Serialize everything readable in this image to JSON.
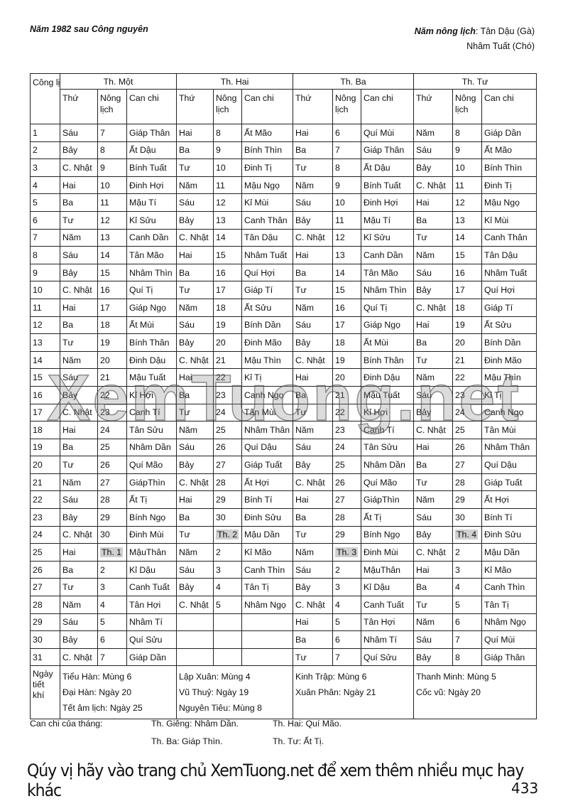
{
  "header": {
    "left": "Năm 1982 sau Công nguyên",
    "right_label": "Năm nông lịch",
    "right_value1": "Tân Dậu (Gà)",
    "right_value2": "Nhâm Tuất (Chó)"
  },
  "table": {
    "corner": "Công lịch",
    "months": [
      "Th. Một",
      "Th. Hai",
      "Th. Ba",
      "Th. Tư"
    ],
    "subheaders": [
      "Thứ",
      "Nông lịch",
      "Can chi"
    ],
    "month_markers": [
      "Th. 1",
      "Th. 2",
      "Th. 3",
      "Th. 4"
    ],
    "rows": [
      [
        "1",
        "Sáu",
        "7",
        "Giáp Thân",
        "Hai",
        "8",
        "Ất Mão",
        "Hai",
        "6",
        "Quí Mùi",
        "Năm",
        "8",
        "Giáp Dần"
      ],
      [
        "2",
        "Bảy",
        "8",
        "Ất Dậu",
        "Ba",
        "9",
        "Bính Thìn",
        "Ba",
        "7",
        "Giáp Thân",
        "Sáu",
        "9",
        "Ất Mão"
      ],
      [
        "3",
        "C. Nhật",
        "9",
        "Bính Tuất",
        "Tư",
        "10",
        "Đinh Tị",
        "Tư",
        "8",
        "Ất Dậu",
        "Bảy",
        "10",
        "Bính Thìn"
      ],
      [
        "4",
        "Hai",
        "10",
        "Đinh Hợi",
        "Năm",
        "11",
        "Mậu Ngọ",
        "Năm",
        "9",
        "Bính Tuất",
        "C. Nhật",
        "11",
        "Đinh Tị"
      ],
      [
        "5",
        "Ba",
        "11",
        "Mậu Tí",
        "Sáu",
        "12",
        "Kỉ Mùi",
        "Sáu",
        "10",
        "Đinh Hợi",
        "Hai",
        "12",
        "Mậu Ngọ"
      ],
      [
        "6",
        "Tư",
        "12",
        "Kỉ Sửu",
        "Bảy",
        "13",
        "Canh Thân",
        "Bảy",
        "11",
        "Mậu Tí",
        "Ba",
        "13",
        "Kỉ Mùi"
      ],
      [
        "7",
        "Năm",
        "13",
        "Canh Dần",
        "C. Nhật",
        "14",
        "Tân Dậu",
        "C. Nhật",
        "12",
        "Kỉ Sửu",
        "Tư",
        "14",
        "Canh Thân"
      ],
      [
        "8",
        "Sáu",
        "14",
        "Tân Mão",
        "Hai",
        "15",
        "Nhâm Tuất",
        "Hai",
        "13",
        "Canh Dần",
        "Năm",
        "15",
        "Tân Dậu"
      ],
      [
        "9",
        "Bảy",
        "15",
        "Nhâm Thìn",
        "Ba",
        "16",
        "Quí Hợi",
        "Ba",
        "14",
        "Tân Mão",
        "Sáu",
        "16",
        "Nhâm Tuất"
      ],
      [
        "10",
        "C. Nhật",
        "16",
        "Quí Tị",
        "Tư",
        "17",
        "Giáp Tí",
        "Tư",
        "15",
        "Nhâm Thìn",
        "Bảy",
        "17",
        "Quí Hợi"
      ],
      [
        "11",
        "Hai",
        "17",
        "Giáp Ngọ",
        "Năm",
        "18",
        "Ất Sửu",
        "Năm",
        "16",
        "Quí Tị",
        "C. Nhật",
        "18",
        "Giáp Tí"
      ],
      [
        "12",
        "Ba",
        "18",
        "Ất Mùi",
        "Sáu",
        "19",
        "Bính Dần",
        "Sáu",
        "17",
        "Giáp Ngọ",
        "Hai",
        "19",
        "Ất Sửu"
      ],
      [
        "13",
        "Tư",
        "19",
        "Bính Thân",
        "Bảy",
        "20",
        "Đinh Mão",
        "Bảy",
        "18",
        "Ất Mùi",
        "Ba",
        "20",
        "Bính Dần"
      ],
      [
        "14",
        "Năm",
        "20",
        "Đinh Dậu",
        "C. Nhật",
        "21",
        "Mậu Thìn",
        "C. Nhật",
        "19",
        "Bính Thân",
        "Tư",
        "21",
        "Đinh Mão"
      ],
      [
        "15",
        "Sáu",
        "21",
        "Mậu Tuất",
        "Hai",
        "22",
        "Kỉ Tị",
        "Hai",
        "20",
        "Đinh Dậu",
        "Năm",
        "22",
        "Mậu Thìn"
      ],
      [
        "16",
        "Bảy",
        "22",
        "Kỉ Hợi",
        "Ba",
        "23",
        "Canh Ngọ",
        "Ba",
        "21",
        "Mậu Tuất",
        "Sáu",
        "23",
        "Kỉ Tị"
      ],
      [
        "17",
        "C. Nhật",
        "23",
        "Canh Tí",
        "Tư",
        "24",
        "Tân Mùi",
        "Tư",
        "22",
        "Kỉ Hợi",
        "Bảy",
        "24",
        "Canh Ngọ"
      ],
      [
        "18",
        "Hai",
        "24",
        "Tân Sửu",
        "Năm",
        "25",
        "Nhâm Thân",
        "Năm",
        "23",
        "Canh Tí",
        "C. Nhật",
        "25",
        "Tân Mùi"
      ],
      [
        "19",
        "Ba",
        "25",
        "Nhâm Dần",
        "Sáu",
        "26",
        "Quí Dậu",
        "Sáu",
        "24",
        "Tân Sửu",
        "Hai",
        "26",
        "Nhâm Thân"
      ],
      [
        "20",
        "Tư",
        "26",
        "Quí Mão",
        "Bảy",
        "27",
        "Giáp Tuất",
        "Bảy",
        "25",
        "Nhâm Dần",
        "Ba",
        "27",
        "Quí Dậu"
      ],
      [
        "21",
        "Năm",
        "27",
        "GiápThìn",
        "C. Nhật",
        "28",
        "Ất Hợi",
        "C. Nhật",
        "26",
        "Quí Mão",
        "Tư",
        "28",
        "Giáp Tuất"
      ],
      [
        "22",
        "Sáu",
        "28",
        "Ất Tị",
        "Hai",
        "29",
        "Bính Tí",
        "Hai",
        "27",
        "GiápThìn",
        "Năm",
        "29",
        "Ất Hợi"
      ],
      [
        "23",
        "Bảy",
        "29",
        "Bính Ngọ",
        "Ba",
        "30",
        "Đinh Sửu",
        "Ba",
        "28",
        "Ất Tị",
        "Sáu",
        "30",
        "Bính Tí"
      ],
      [
        "24",
        "C. Nhật",
        "30",
        "Đinh Mùi",
        "Tư",
        "Th. 2",
        "Mậu Dần",
        "Tư",
        "29",
        "Bính Ngọ",
        "Bảy",
        "Th. 4",
        "Đinh Sửu"
      ],
      [
        "25",
        "Hai",
        "Th. 1",
        "MậuThân",
        "Năm",
        "2",
        "Kỉ Mão",
        "Năm",
        "Th. 3",
        "Đinh Mùi",
        "C. Nhật",
        "2",
        "Mậu Dần"
      ],
      [
        "26",
        "Ba",
        "2",
        "Kỉ Dậu",
        "Sáu",
        "3",
        "Canh Thìn",
        "Sáu",
        "2",
        "MậuThân",
        "Hai",
        "3",
        "Kỉ Mão"
      ],
      [
        "27",
        "Tư",
        "3",
        "Canh Tuất",
        "Bảy",
        "4",
        "Tân Tị",
        "Bảy",
        "3",
        "Kỉ Dậu",
        "Ba",
        "4",
        "Canh Thìn"
      ],
      [
        "28",
        "Năm",
        "4",
        "Tân Hợi",
        "C. Nhật",
        "5",
        "Nhâm Ngọ",
        "C. Nhật",
        "4",
        "Canh Tuất",
        "Tư",
        "5",
        "Tân Tị"
      ],
      [
        "29",
        "Sáu",
        "5",
        "Nhâm Tí",
        "",
        "",
        "",
        "Hai",
        "5",
        "Tân Hợi",
        "Năm",
        "6",
        "Nhâm Ngọ"
      ],
      [
        "30",
        "Bảy",
        "6",
        "Quí Sửu",
        "",
        "",
        "",
        "Ba",
        "6",
        "Nhâm Tí",
        "Sáu",
        "7",
        "Quí Mùi"
      ],
      [
        "31",
        "C. Nhật",
        "7",
        "Giáp Dần",
        "",
        "",
        "",
        "Tư",
        "7",
        "Quí Sửu",
        "Bảy",
        "8",
        "Giáp Thân"
      ]
    ],
    "solar_terms_label": "Ngày tiết khí",
    "solar_terms": [
      [
        "Tiểu Hàn: Mùng 6",
        "Đại Hàn: Ngày 20",
        "Tết âm lịch: Ngày 25"
      ],
      [
        "Lập Xuân: Mùng 4",
        "Vũ Thuỷ: Ngày 19",
        "Nguyên Tiêu: Mùng 8"
      ],
      [
        "Kinh Trập: Mùng 6",
        "Xuân Phân: Ngày 21"
      ],
      [
        "Thanh Minh: Mùng 5",
        "Cốc vũ: Ngày 20"
      ]
    ]
  },
  "month_canchi": {
    "label": "Can chi của tháng:",
    "m1": "Th. Giêng: Nhâm Dần.",
    "m2": "Th. Hai: Quí Mão.",
    "m3": "Th. Ba: Giáp Thìn.",
    "m4": "Th. Tư: Ất Tị."
  },
  "watermark": "XemTuong.net",
  "banner": "Qúy vị hãy vào trang chủ XemTuong.net để xem thêm nhiều mục hay khác",
  "page_number": "433"
}
